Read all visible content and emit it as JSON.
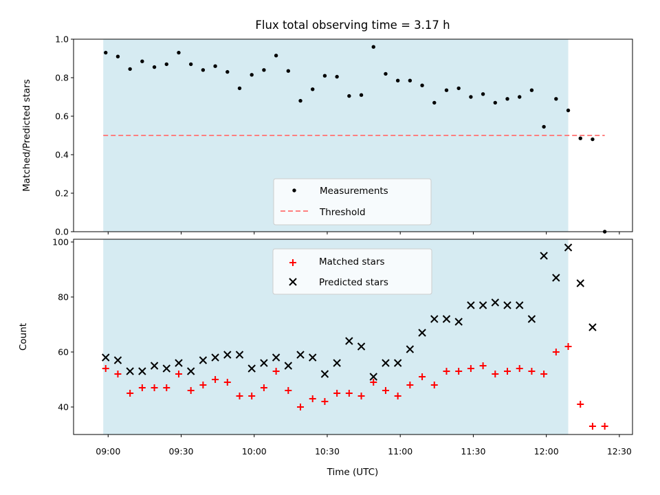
{
  "chart_data": {
    "title": "Flux total observing time = 3.17 h",
    "xlabel": "Time (UTC)",
    "x_ticks": [
      "09:00",
      "09:30",
      "10:00",
      "10:30",
      "11:00",
      "11:30",
      "12:00",
      "12:30"
    ],
    "x_tick_minutes": [
      540,
      570,
      600,
      630,
      660,
      690,
      720,
      750
    ],
    "xlim_minutes": [
      525.8,
      755.4
    ],
    "shaded_span": {
      "start": "08:58",
      "end": "12:09",
      "color": "#add8e6"
    },
    "panels": [
      {
        "type": "scatter",
        "ylabel": "Matched/Predicted stars",
        "ylim": [
          0,
          1.0
        ],
        "yticks": [
          0.0,
          0.2,
          0.4,
          0.6,
          0.8,
          1.0
        ],
        "ytick_labels": [
          "0.0",
          "0.2",
          "0.4",
          "0.6",
          "0.8",
          "1.0"
        ],
        "legend_position": "lower-center",
        "threshold": {
          "name": "Threshold",
          "value": 0.5,
          "color": "#ff7f7f",
          "style": "dashed"
        },
        "series": [
          {
            "name": "Measurements",
            "marker": "dot",
            "color": "#000000",
            "x": [
              "08:59",
              "09:04",
              "09:09",
              "09:14",
              "09:19",
              "09:24",
              "09:29",
              "09:34",
              "09:39",
              "09:44",
              "09:49",
              "09:54",
              "09:59",
              "10:04",
              "10:09",
              "10:14",
              "10:19",
              "10:24",
              "10:29",
              "10:34",
              "10:39",
              "10:44",
              "10:49",
              "10:54",
              "10:59",
              "11:04",
              "11:09",
              "11:14",
              "11:19",
              "11:24",
              "11:29",
              "11:34",
              "11:39",
              "11:44",
              "11:49",
              "11:54",
              "11:59",
              "12:04",
              "12:09",
              "12:14",
              "12:19",
              "12:24"
            ],
            "y": [
              0.93,
              0.91,
              0.845,
              0.885,
              0.855,
              0.87,
              0.93,
              0.87,
              0.84,
              0.86,
              0.83,
              0.745,
              0.815,
              0.84,
              0.915,
              0.835,
              0.68,
              0.74,
              0.81,
              0.805,
              0.705,
              0.71,
              0.96,
              0.82,
              0.785,
              0.785,
              0.76,
              0.67,
              0.735,
              0.745,
              0.7,
              0.715,
              0.67,
              0.69,
              0.7,
              0.735,
              0.545,
              0.69,
              0.63,
              0.485,
              0.48,
              0.0
            ]
          }
        ]
      },
      {
        "type": "scatter",
        "ylabel": "Count",
        "ylim": [
          30,
          101
        ],
        "yticks": [
          40,
          60,
          80,
          100
        ],
        "ytick_labels": [
          "40",
          "60",
          "80",
          "100"
        ],
        "legend_position": "upper-center",
        "series": [
          {
            "name": "Matched stars",
            "marker": "plus",
            "color": "#ff0000",
            "x": [
              "08:59",
              "09:04",
              "09:09",
              "09:14",
              "09:19",
              "09:24",
              "09:29",
              "09:34",
              "09:39",
              "09:44",
              "09:49",
              "09:54",
              "09:59",
              "10:04",
              "10:09",
              "10:14",
              "10:19",
              "10:24",
              "10:29",
              "10:34",
              "10:39",
              "10:44",
              "10:49",
              "10:54",
              "10:59",
              "11:04",
              "11:09",
              "11:14",
              "11:19",
              "11:24",
              "11:29",
              "11:34",
              "11:39",
              "11:44",
              "11:49",
              "11:54",
              "11:59",
              "12:04",
              "12:09",
              "12:14",
              "12:19",
              "12:24"
            ],
            "y": [
              54,
              52,
              45,
              47,
              47,
              47,
              52,
              46,
              48,
              50,
              49,
              44,
              44,
              47,
              53,
              46,
              40,
              43,
              42,
              45,
              45,
              44,
              49,
              46,
              44,
              48,
              51,
              48,
              53,
              53,
              54,
              55,
              52,
              53,
              54,
              53,
              52,
              60,
              62,
              41,
              33,
              33
            ]
          },
          {
            "name": "Predicted stars",
            "marker": "x",
            "color": "#000000",
            "x": [
              "08:59",
              "09:04",
              "09:09",
              "09:14",
              "09:19",
              "09:24",
              "09:29",
              "09:34",
              "09:39",
              "09:44",
              "09:49",
              "09:54",
              "09:59",
              "10:04",
              "10:09",
              "10:14",
              "10:19",
              "10:24",
              "10:29",
              "10:34",
              "10:39",
              "10:44",
              "10:49",
              "10:54",
              "10:59",
              "11:04",
              "11:09",
              "11:14",
              "11:19",
              "11:24",
              "11:29",
              "11:34",
              "11:39",
              "11:44",
              "11:49",
              "11:54",
              "11:59",
              "12:04",
              "12:09",
              "12:14",
              "12:19"
            ],
            "y": [
              58,
              57,
              53,
              53,
              55,
              54,
              56,
              53,
              57,
              58,
              59,
              59,
              54,
              56,
              58,
              55,
              59,
              58,
              52,
              56,
              64,
              62,
              51,
              56,
              56,
              61,
              67,
              72,
              72,
              71,
              77,
              77,
              78,
              77,
              77,
              72,
              95,
              87,
              98,
              85,
              69
            ]
          }
        ]
      }
    ]
  }
}
